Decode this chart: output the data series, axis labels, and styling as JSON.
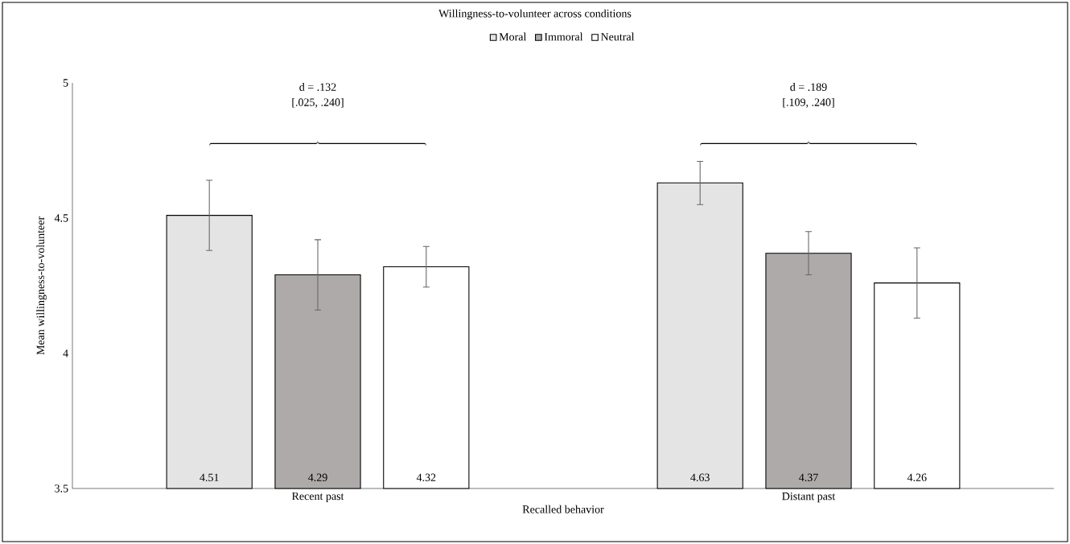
{
  "chart_data": {
    "type": "bar",
    "title": "Willingness-to-volunteer across conditions",
    "xlabel": "Recalled behavior",
    "ylabel": "Mean willingness-to-volunteer",
    "categories": [
      "Recent past",
      "Distant past"
    ],
    "series": [
      {
        "name": "Moral",
        "color": "#e4e4e4",
        "values": [
          4.51,
          4.63
        ],
        "errors": [
          0.13,
          0.08
        ]
      },
      {
        "name": "Immoral",
        "color": "#aeaaaa",
        "values": [
          4.29,
          4.37
        ],
        "errors": [
          0.13,
          0.08
        ]
      },
      {
        "name": "Neutral",
        "color": "#ffffff",
        "values": [
          4.32,
          4.26
        ],
        "errors": [
          0.075,
          0.13
        ]
      }
    ],
    "ylim": [
      3.5,
      5
    ],
    "yticks": [
      3.5,
      4,
      4.5,
      5
    ],
    "data_labels": true,
    "grid": false,
    "legend": "top",
    "annotations": [
      "d = .132",
      "[.025, .240]",
      "d = .189",
      "[.109, .240]"
    ]
  }
}
